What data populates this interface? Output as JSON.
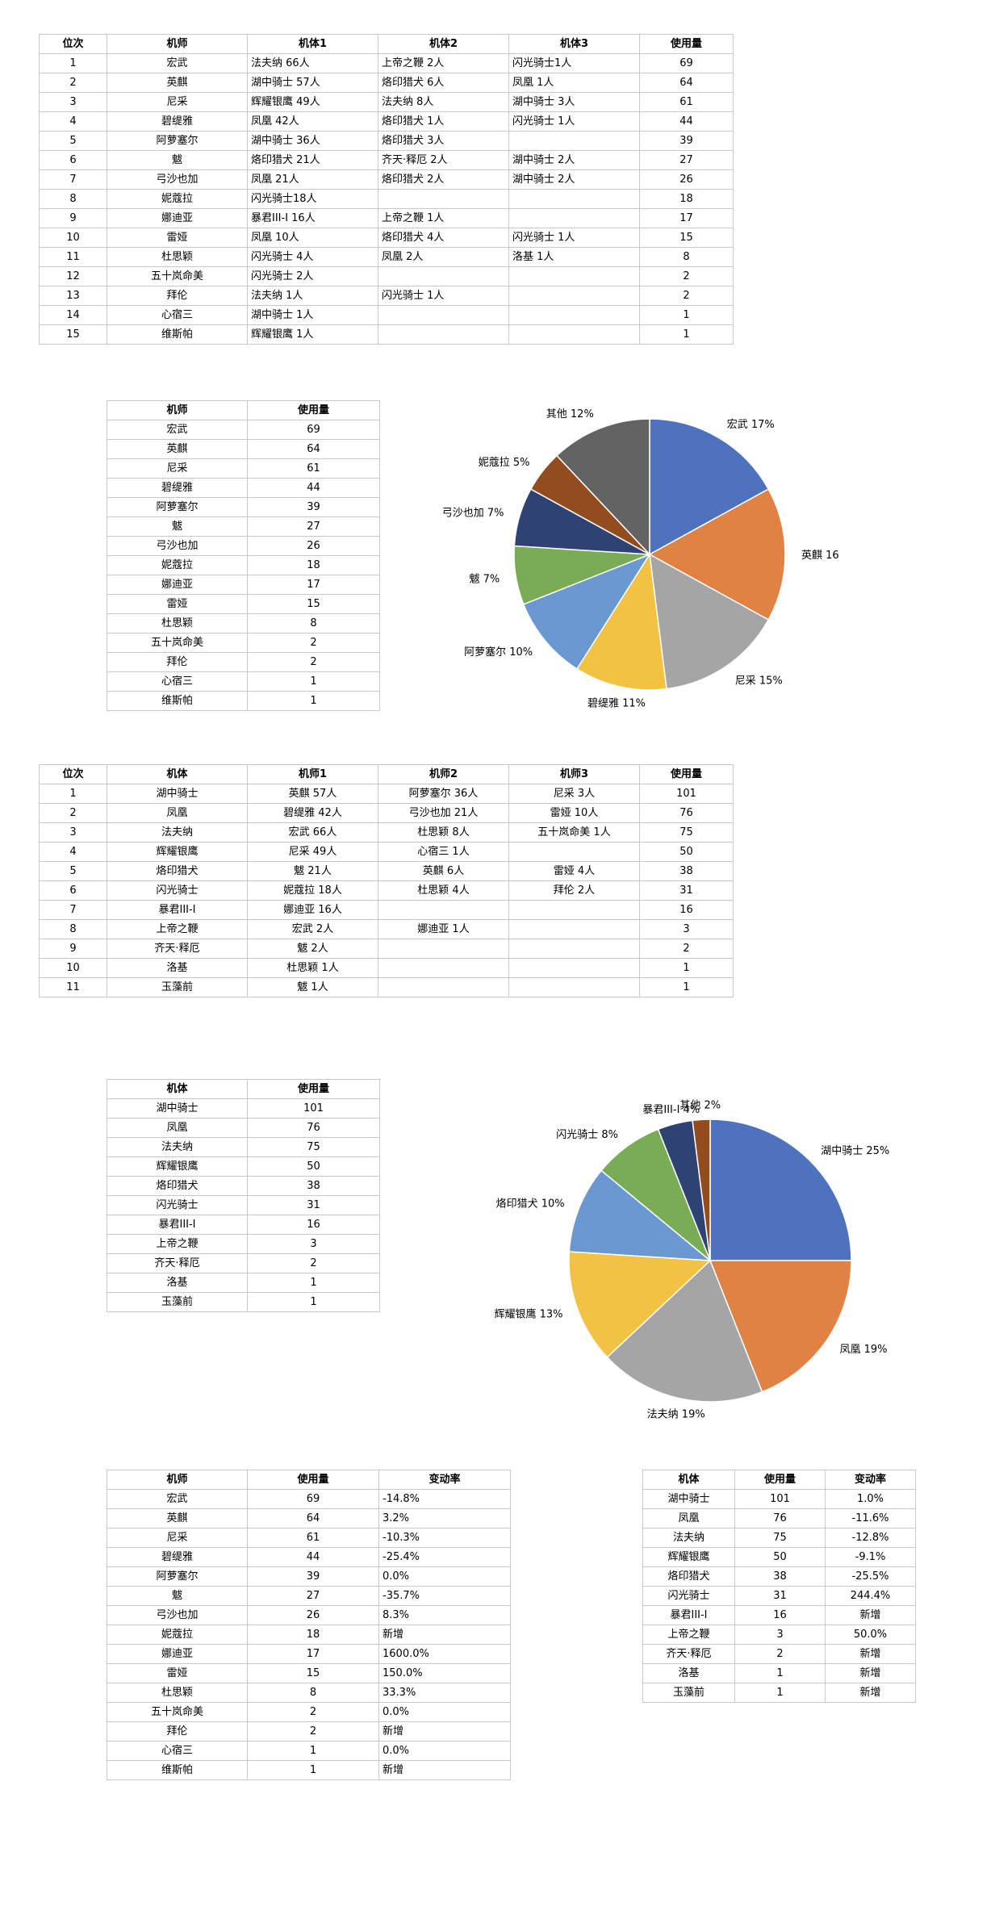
{
  "pilot_rank": {
    "headers": [
      "位次",
      "机师",
      "机体1",
      "机体2",
      "机体3",
      "使用量"
    ],
    "rows": [
      [
        "1",
        "宏武",
        "法夫纳 66人",
        "上帝之鞭 2人",
        "闪光骑士1人",
        "69"
      ],
      [
        "2",
        "英麒",
        "湖中骑士 57人",
        "烙印猎犬 6人",
        "凤凰 1人",
        "64"
      ],
      [
        "3",
        "尼采",
        "辉耀银鹰 49人",
        "法夫纳 8人",
        "湖中骑士 3人",
        "61"
      ],
      [
        "4",
        "碧缇雅",
        "凤凰 42人",
        "烙印猎犬 1人",
        "闪光骑士 1人",
        "44"
      ],
      [
        "5",
        "阿萝塞尔",
        "湖中骑士 36人",
        "烙印猎犬 3人",
        "",
        "39"
      ],
      [
        "6",
        "魃",
        "烙印猎犬 21人",
        "齐天·释厄 2人",
        "湖中骑士 2人",
        "27"
      ],
      [
        "7",
        "弓沙也加",
        "凤凰 21人",
        "烙印猎犬 2人",
        "湖中骑士 2人",
        "26"
      ],
      [
        "8",
        "妮蔻拉",
        "闪光骑士18人",
        "",
        "",
        "18"
      ],
      [
        "9",
        "娜迪亚",
        "暴君III-I 16人",
        "上帝之鞭 1人",
        "",
        "17"
      ],
      [
        "10",
        "雷娅",
        "凤凰 10人",
        "烙印猎犬 4人",
        "闪光骑士 1人",
        "15"
      ],
      [
        "11",
        "杜思颖",
        "闪光骑士 4人",
        "凤凰 2人",
        "洛基 1人",
        "8"
      ],
      [
        "12",
        "五十岚命美",
        "闪光骑士 2人",
        "",
        "",
        "2"
      ],
      [
        "13",
        "拜伦",
        "法夫纳 1人",
        "闪光骑士 1人",
        "",
        "2"
      ],
      [
        "14",
        "心宿三",
        "湖中骑士 1人",
        "",
        "",
        "1"
      ],
      [
        "15",
        "维斯帕",
        "辉耀银鹰 1人",
        "",
        "",
        "1"
      ]
    ]
  },
  "pilot_usage": {
    "headers": [
      "机师",
      "使用量"
    ],
    "rows": [
      [
        "宏武",
        "69"
      ],
      [
        "英麒",
        "64"
      ],
      [
        "尼采",
        "61"
      ],
      [
        "碧缇雅",
        "44"
      ],
      [
        "阿萝塞尔",
        "39"
      ],
      [
        "魃",
        "27"
      ],
      [
        "弓沙也加",
        "26"
      ],
      [
        "妮蔻拉",
        "18"
      ],
      [
        "娜迪亚",
        "17"
      ],
      [
        "雷娅",
        "15"
      ],
      [
        "杜思颖",
        "8"
      ],
      [
        "五十岚命美",
        "2"
      ],
      [
        "拜伦",
        "2"
      ],
      [
        "心宿三",
        "1"
      ],
      [
        "维斯帕",
        "1"
      ]
    ]
  },
  "mech_rank": {
    "headers": [
      "位次",
      "机体",
      "机师1",
      "机师2",
      "机师3",
      "使用量"
    ],
    "rows": [
      [
        "1",
        "湖中骑士",
        "英麒 57人",
        "阿萝塞尔 36人",
        "尼采 3人",
        "101"
      ],
      [
        "2",
        "凤凰",
        "碧缇雅 42人",
        "弓沙也加 21人",
        "雷娅 10人",
        "76"
      ],
      [
        "3",
        "法夫纳",
        "宏武 66人",
        "杜思颖 8人",
        "五十岚命美 1人",
        "75"
      ],
      [
        "4",
        "辉耀银鹰",
        "尼采 49人",
        "心宿三 1人",
        "",
        "50"
      ],
      [
        "5",
        "烙印猎犬",
        "魃 21人",
        "英麒 6人",
        "雷娅 4人",
        "38"
      ],
      [
        "6",
        "闪光骑士",
        "妮蔻拉 18人",
        "杜思颖 4人",
        "拜伦 2人",
        "31"
      ],
      [
        "7",
        "暴君III-I",
        "娜迪亚 16人",
        "",
        "",
        "16"
      ],
      [
        "8",
        "上帝之鞭",
        "宏武 2人",
        "娜迪亚 1人",
        "",
        "3"
      ],
      [
        "9",
        "齐天·释厄",
        "魃 2人",
        "",
        "",
        "2"
      ],
      [
        "10",
        "洛基",
        "杜思颖 1人",
        "",
        "",
        "1"
      ],
      [
        "11",
        "玉藻前",
        "魃 1人",
        "",
        "",
        "1"
      ]
    ]
  },
  "mech_usage": {
    "headers": [
      "机体",
      "使用量"
    ],
    "rows": [
      [
        "湖中骑士",
        "101"
      ],
      [
        "凤凰",
        "76"
      ],
      [
        "法夫纳",
        "75"
      ],
      [
        "辉耀银鹰",
        "50"
      ],
      [
        "烙印猎犬",
        "38"
      ],
      [
        "闪光骑士",
        "31"
      ],
      [
        "暴君III-I",
        "16"
      ],
      [
        "上帝之鞭",
        "3"
      ],
      [
        "齐天·释厄",
        "2"
      ],
      [
        "洛基",
        "1"
      ],
      [
        "玉藻前",
        "1"
      ]
    ]
  },
  "pilot_change": {
    "headers": [
      "机师",
      "使用量",
      "变动率"
    ],
    "rows": [
      [
        "宏武",
        "69",
        "-14.8%"
      ],
      [
        "英麒",
        "64",
        "3.2%"
      ],
      [
        "尼采",
        "61",
        "-10.3%"
      ],
      [
        "碧缇雅",
        "44",
        "-25.4%"
      ],
      [
        "阿萝塞尔",
        "39",
        "0.0%"
      ],
      [
        "魃",
        "27",
        "-35.7%"
      ],
      [
        "弓沙也加",
        "26",
        "8.3%"
      ],
      [
        "妮蔻拉",
        "18",
        "新增"
      ],
      [
        "娜迪亚",
        "17",
        "1600.0%"
      ],
      [
        "雷娅",
        "15",
        "150.0%"
      ],
      [
        "杜思颖",
        "8",
        "33.3%"
      ],
      [
        "五十岚命美",
        "2",
        "0.0%"
      ],
      [
        "拜伦",
        "2",
        "新增"
      ],
      [
        "心宿三",
        "1",
        "0.0%"
      ],
      [
        "维斯帕",
        "1",
        "新增"
      ]
    ]
  },
  "mech_change": {
    "headers": [
      "机体",
      "使用量",
      "变动率"
    ],
    "rows": [
      [
        "湖中骑士",
        "101",
        "1.0%"
      ],
      [
        "凤凰",
        "76",
        "-11.6%"
      ],
      [
        "法夫纳",
        "75",
        "-12.8%"
      ],
      [
        "辉耀银鹰",
        "50",
        "-9.1%"
      ],
      [
        "烙印猎犬",
        "38",
        "-25.5%"
      ],
      [
        "闪光骑士",
        "31",
        "244.4%"
      ],
      [
        "暴君III-I",
        "16",
        "新增"
      ],
      [
        "上帝之鞭",
        "3",
        "50.0%"
      ],
      [
        "齐天·释厄",
        "2",
        "新增"
      ],
      [
        "洛基",
        "1",
        "新增"
      ],
      [
        "玉藻前",
        "1",
        "新增"
      ]
    ]
  },
  "chart_data": [
    {
      "type": "pie",
      "title": "",
      "slices": [
        {
          "label": "宏武",
          "value": 17,
          "color": "#4e72be"
        },
        {
          "label": "英麒",
          "value": 16,
          "color": "#df8244"
        },
        {
          "label": "尼采",
          "value": 15,
          "color": "#a5a5a5"
        },
        {
          "label": "碧缇雅",
          "value": 11,
          "color": "#f4c242"
        },
        {
          "label": "阿萝塞尔",
          "value": 10,
          "color": "#6a98d0"
        },
        {
          "label": "魃",
          "value": 7,
          "color": "#7aab55"
        },
        {
          "label": "弓沙也加",
          "value": 7,
          "color": "#2e4374"
        },
        {
          "label": "妮蔻拉",
          "value": 5,
          "color": "#934c1d"
        },
        {
          "label": "其他",
          "value": 12,
          "color": "#636363"
        }
      ]
    },
    {
      "type": "pie",
      "title": "",
      "slices": [
        {
          "label": "湖中骑士",
          "value": 25,
          "color": "#4e72be"
        },
        {
          "label": "凤凰",
          "value": 19,
          "color": "#df8244"
        },
        {
          "label": "法夫纳",
          "value": 19,
          "color": "#a5a5a5"
        },
        {
          "label": "辉耀银鹰",
          "value": 13,
          "color": "#f4c242"
        },
        {
          "label": "烙印猎犬",
          "value": 10,
          "color": "#6a98d0"
        },
        {
          "label": "闪光骑士",
          "value": 8,
          "color": "#7aab55"
        },
        {
          "label": "暴君III-I",
          "value": 4,
          "color": "#2e4374"
        },
        {
          "label": "其他",
          "value": 2,
          "color": "#934c1d"
        }
      ]
    }
  ]
}
